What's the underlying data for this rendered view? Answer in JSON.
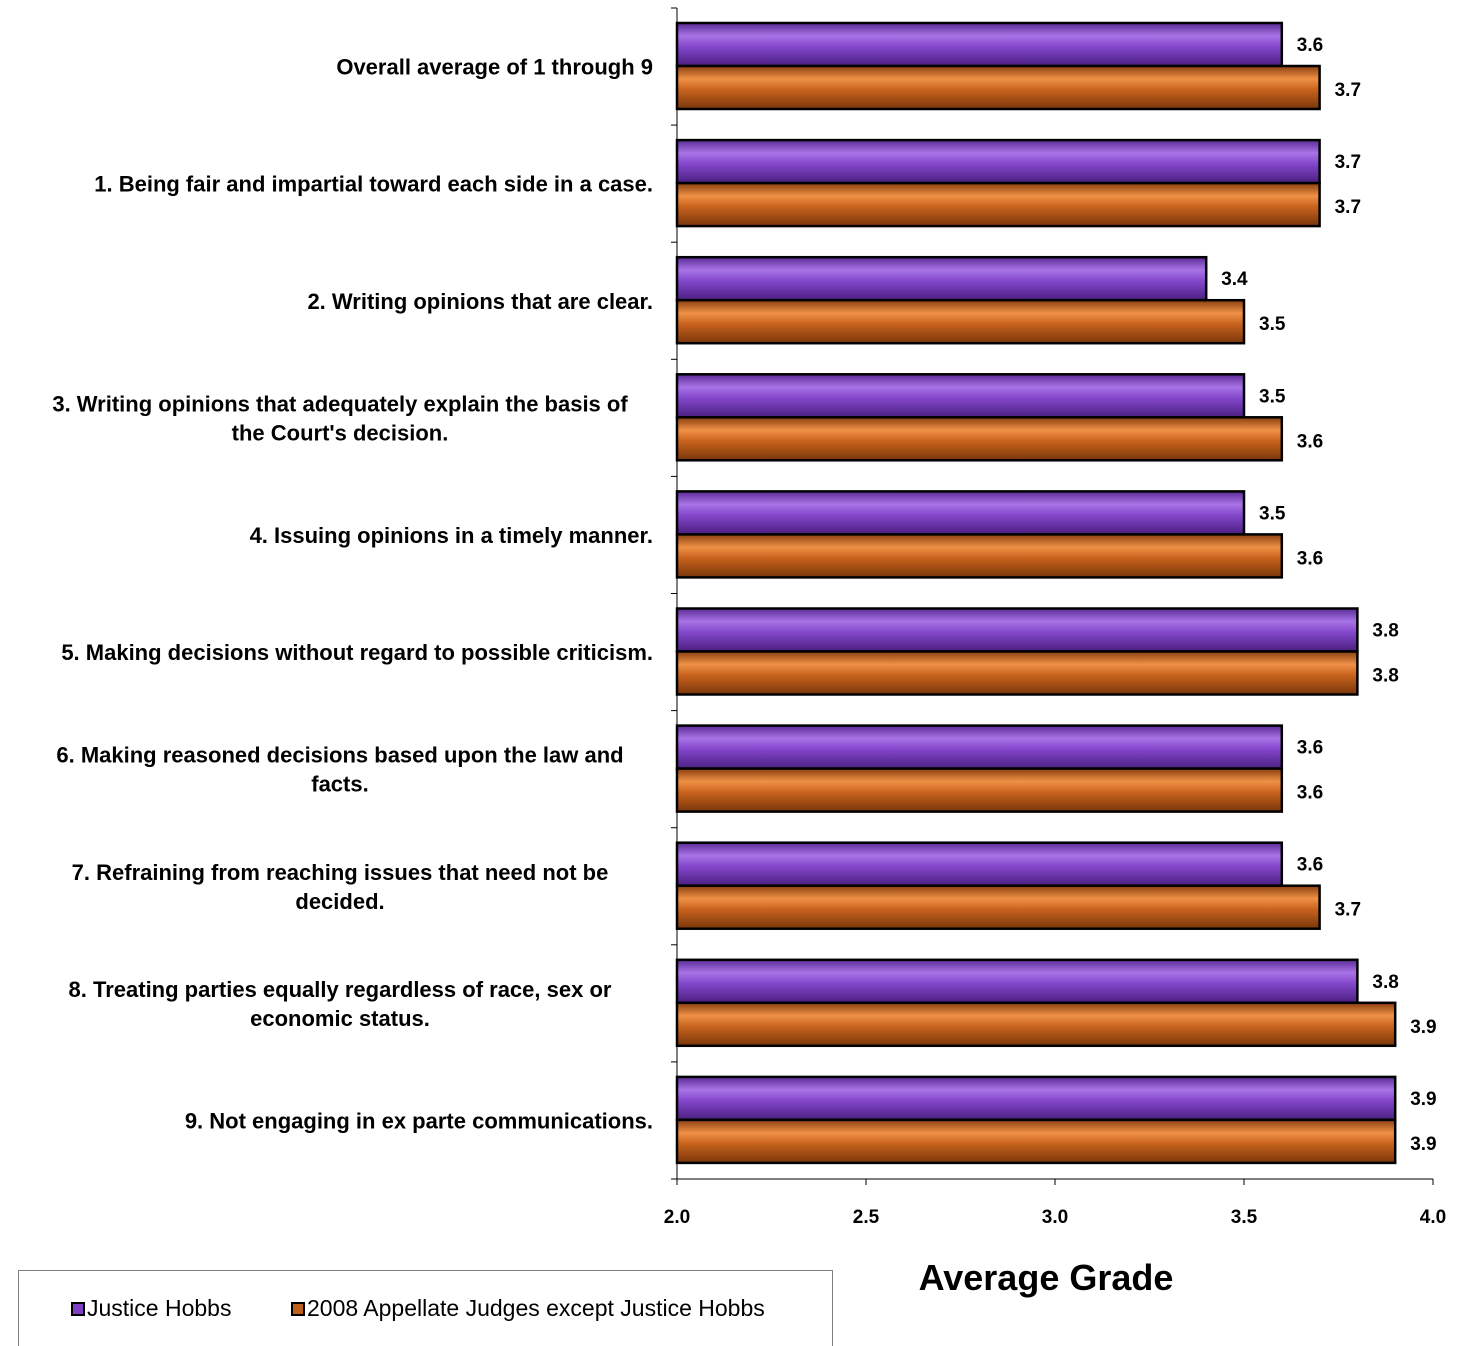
{
  "chart_data": {
    "type": "bar",
    "orientation": "horizontal",
    "categories": [
      [
        "Overall average of 1 through 9"
      ],
      [
        "1. Being fair and impartial toward each side in a case."
      ],
      [
        "2. Writing opinions that are clear."
      ],
      [
        "3. Writing opinions that adequately explain the basis of",
        "the Court's decision."
      ],
      [
        "4. Issuing opinions in a timely manner."
      ],
      [
        "5. Making decisions without regard to possible criticism."
      ],
      [
        "6. Making reasoned decisions based upon the law and",
        "facts."
      ],
      [
        "7. Refraining from reaching issues that need not be",
        "decided."
      ],
      [
        "8. Treating parties equally regardless of race, sex or",
        "economic status."
      ],
      [
        "9. Not engaging in ex parte communications."
      ]
    ],
    "series": [
      {
        "name": "Justice Hobbs",
        "color": "#7e3fc4",
        "values": [
          3.6,
          3.7,
          3.4,
          3.5,
          3.5,
          3.8,
          3.6,
          3.6,
          3.8,
          3.9
        ]
      },
      {
        "name": "2008 Appellate Judges except Justice Hobbs",
        "color": "#c0601a",
        "values": [
          3.7,
          3.7,
          3.5,
          3.6,
          3.6,
          3.8,
          3.6,
          3.7,
          3.9,
          3.9
        ]
      }
    ],
    "xlim": [
      2.0,
      4.0
    ],
    "xticks": [
      "2.0",
      "2.5",
      "3.0",
      "3.5",
      "4.0"
    ],
    "xlabel": "Average Grade",
    "legend_position": "bottom-left",
    "grid": false
  }
}
